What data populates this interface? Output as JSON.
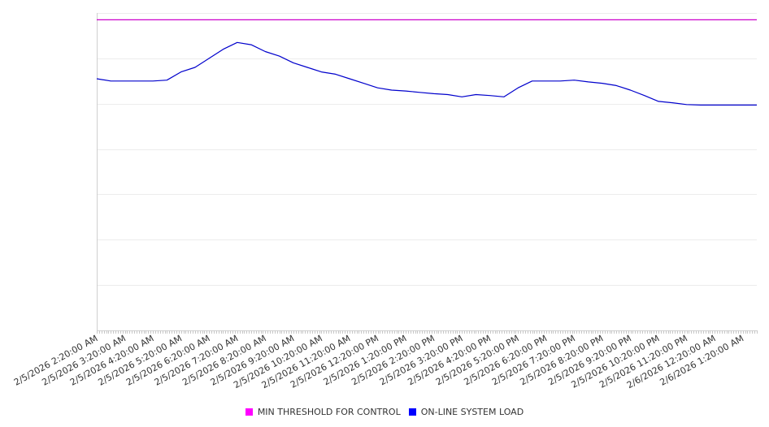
{
  "chart_data": {
    "type": "line",
    "title": "",
    "xlabel": "",
    "ylabel": "",
    "y_ticks_labeled": false,
    "ylim": [
      0,
      7
    ],
    "grid": true,
    "legend_position": "bottom-center",
    "x_tick_labels": [
      "2/5/2026 2:20:00 AM",
      "2/5/2026 3:20:00 AM",
      "2/5/2026 4:20:00 AM",
      "2/5/2026 5:20:00 AM",
      "2/5/2026 6:20:00 AM",
      "2/5/2026 7:20:00 AM",
      "2/5/2026 8:20:00 AM",
      "2/5/2026 9:20:00 AM",
      "2/5/2026 10:20:00 AM",
      "2/5/2026 11:20:00 AM",
      "2/5/2026 12:20:00 PM",
      "2/5/2026 1:20:00 PM",
      "2/5/2026 2:20:00 PM",
      "2/5/2026 3:20:00 PM",
      "2/5/2026 4:20:00 PM",
      "2/5/2026 5:20:00 PM",
      "2/5/2026 6:20:00 PM",
      "2/5/2026 7:20:00 PM",
      "2/5/2026 8:20:00 PM",
      "2/5/2026 9:20:00 PM",
      "2/5/2026 10:20:00 PM",
      "2/5/2026 11:20:00 PM",
      "2/6/2026 12:20:00 AM",
      "2/6/2026 1:20:00 AM"
    ],
    "series": [
      {
        "name": "MIN THRESHOLD FOR CONTROL",
        "color": "#cc00cc",
        "x": [
          "2/5/2026 2:20:00 AM",
          "2/6/2026 1:50:00 AM"
        ],
        "values": [
          6.85,
          6.85
        ]
      },
      {
        "name": "ON-LINE SYSTEM LOAD",
        "color": "#0000cc",
        "x": [
          "2/5/2026 2:20:00 AM",
          "2/5/2026 2:50:00 AM",
          "2/5/2026 3:20:00 AM",
          "2/5/2026 3:50:00 AM",
          "2/5/2026 4:20:00 AM",
          "2/5/2026 4:50:00 AM",
          "2/5/2026 5:20:00 AM",
          "2/5/2026 5:50:00 AM",
          "2/5/2026 6:20:00 AM",
          "2/5/2026 6:50:00 AM",
          "2/5/2026 7:20:00 AM",
          "2/5/2026 7:50:00 AM",
          "2/5/2026 8:20:00 AM",
          "2/5/2026 8:50:00 AM",
          "2/5/2026 9:20:00 AM",
          "2/5/2026 9:50:00 AM",
          "2/5/2026 10:20:00 AM",
          "2/5/2026 10:50:00 AM",
          "2/5/2026 11:20:00 AM",
          "2/5/2026 11:50:00 AM",
          "2/5/2026 12:20:00 PM",
          "2/5/2026 12:50:00 PM",
          "2/5/2026 1:20:00 PM",
          "2/5/2026 1:50:00 PM",
          "2/5/2026 2:20:00 PM",
          "2/5/2026 2:50:00 PM",
          "2/5/2026 3:20:00 PM",
          "2/5/2026 3:50:00 PM",
          "2/5/2026 4:20:00 PM",
          "2/5/2026 4:50:00 PM",
          "2/5/2026 5:20:00 PM",
          "2/5/2026 5:50:00 PM",
          "2/5/2026 6:20:00 PM",
          "2/5/2026 6:50:00 PM",
          "2/5/2026 7:20:00 PM",
          "2/5/2026 7:50:00 PM",
          "2/5/2026 8:20:00 PM",
          "2/5/2026 8:50:00 PM",
          "2/5/2026 9:20:00 PM",
          "2/5/2026 9:50:00 PM",
          "2/5/2026 10:20:00 PM",
          "2/5/2026 10:50:00 PM",
          "2/5/2026 11:20:00 PM",
          "2/5/2026 11:50:00 PM",
          "2/6/2026 12:20:00 AM",
          "2/6/2026 12:50:00 AM",
          "2/6/2026 1:20:00 AM",
          "2/6/2026 1:50:00 AM"
        ],
        "values": [
          5.55,
          5.5,
          5.5,
          5.5,
          5.5,
          5.52,
          5.7,
          5.8,
          6.0,
          6.2,
          6.35,
          6.3,
          6.15,
          6.05,
          5.9,
          5.8,
          5.7,
          5.65,
          5.55,
          5.45,
          5.35,
          5.3,
          5.28,
          5.25,
          5.22,
          5.2,
          5.15,
          5.2,
          5.18,
          5.15,
          5.35,
          5.5,
          5.5,
          5.5,
          5.52,
          5.48,
          5.45,
          5.4,
          5.3,
          5.18,
          5.05,
          5.02,
          4.98,
          4.97,
          4.97,
          4.97,
          4.97,
          4.97
        ]
      }
    ]
  },
  "legend": {
    "items": [
      {
        "label": "MIN THRESHOLD FOR CONTROL",
        "color": "#ff00ff"
      },
      {
        "label": "ON-LINE SYSTEM LOAD",
        "color": "#0000ff"
      }
    ]
  }
}
